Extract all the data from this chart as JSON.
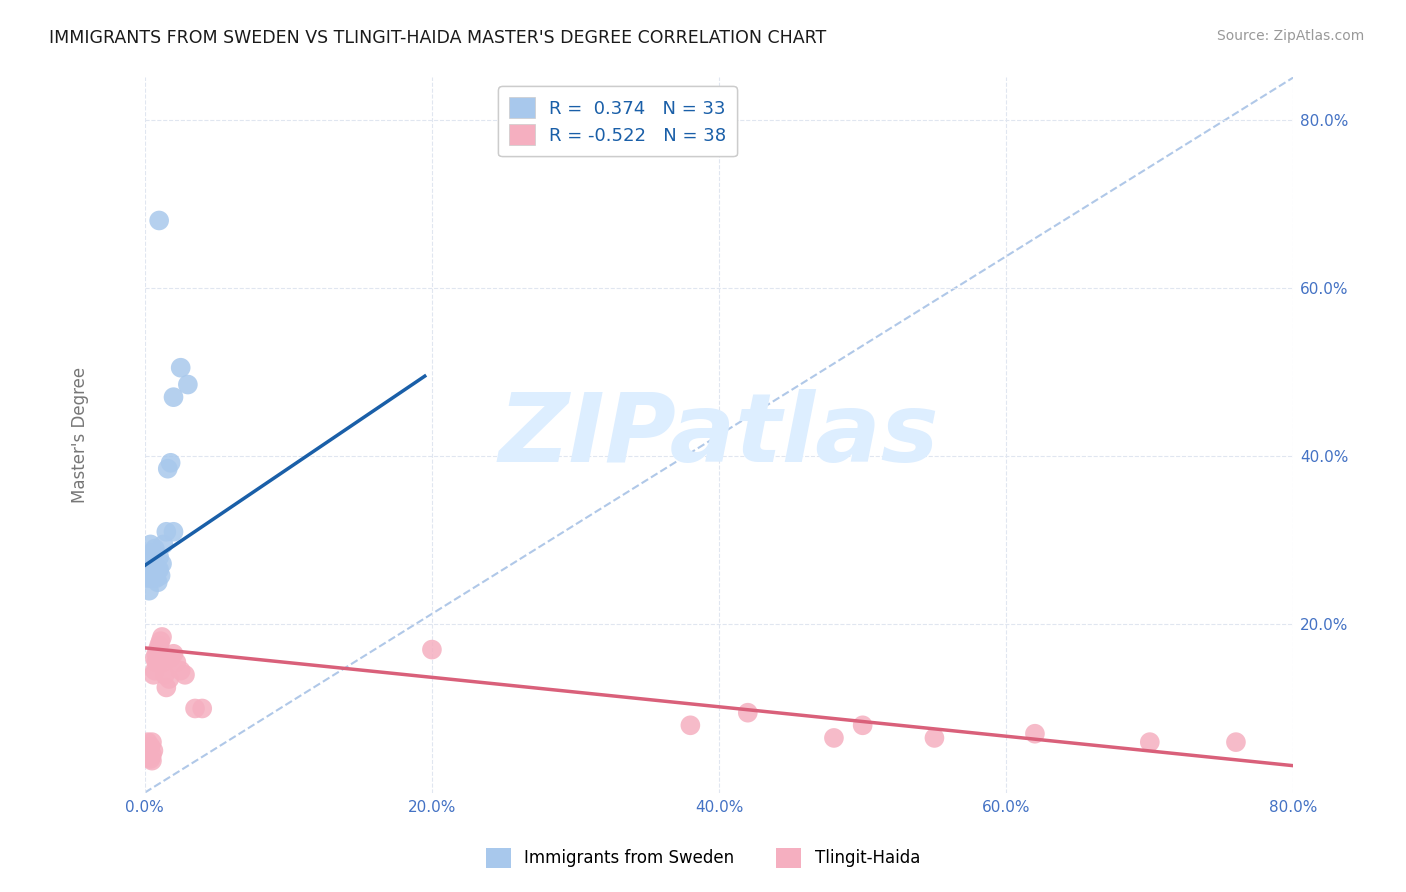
{
  "title": "IMMIGRANTS FROM SWEDEN VS TLINGIT-HAIDA MASTER'S DEGREE CORRELATION CHART",
  "source": "Source: ZipAtlas.com",
  "ylabel": "Master's Degree",
  "xlim": [
    0.0,
    0.8
  ],
  "ylim": [
    0.0,
    0.85
  ],
  "xticks": [
    0.0,
    0.2,
    0.4,
    0.6,
    0.8
  ],
  "yticks": [
    0.2,
    0.4,
    0.6,
    0.8
  ],
  "xticklabels": [
    "0.0%",
    "20.0%",
    "40.0%",
    "60.0%",
    "80.0%"
  ],
  "yticklabels": [
    "20.0%",
    "40.0%",
    "60.0%",
    "80.0%"
  ],
  "blue_R": "0.374",
  "blue_N": "33",
  "pink_R": "-0.522",
  "pink_N": "38",
  "blue_color": "#a8c8ec",
  "pink_color": "#f5afc0",
  "blue_line_color": "#1a5fa8",
  "pink_line_color": "#d9607a",
  "dashed_line_color": "#b0c8e8",
  "grid_color": "#e0e6f0",
  "background_color": "#ffffff",
  "watermark_text": "ZIPatlas",
  "watermark_color": "#ddeeff",
  "legend_label_blue": "Immigrants from Sweden",
  "legend_label_pink": "Tlingit-Haida",
  "blue_scatter_x": [
    0.002,
    0.003,
    0.003,
    0.004,
    0.004,
    0.004,
    0.005,
    0.005,
    0.005,
    0.005,
    0.006,
    0.006,
    0.006,
    0.007,
    0.007,
    0.007,
    0.008,
    0.008,
    0.009,
    0.009,
    0.01,
    0.01,
    0.011,
    0.012,
    0.013,
    0.015,
    0.016,
    0.018,
    0.02,
    0.025,
    0.03,
    0.02,
    0.01
  ],
  "blue_scatter_y": [
    0.255,
    0.24,
    0.265,
    0.275,
    0.28,
    0.295,
    0.255,
    0.265,
    0.275,
    0.285,
    0.26,
    0.27,
    0.285,
    0.26,
    0.27,
    0.29,
    0.255,
    0.268,
    0.25,
    0.265,
    0.265,
    0.28,
    0.258,
    0.272,
    0.295,
    0.31,
    0.385,
    0.392,
    0.47,
    0.505,
    0.485,
    0.31,
    0.68
  ],
  "pink_scatter_x": [
    0.002,
    0.003,
    0.004,
    0.004,
    0.005,
    0.005,
    0.005,
    0.006,
    0.006,
    0.007,
    0.007,
    0.008,
    0.008,
    0.009,
    0.01,
    0.01,
    0.011,
    0.012,
    0.013,
    0.014,
    0.015,
    0.017,
    0.018,
    0.02,
    0.022,
    0.025,
    0.028,
    0.035,
    0.04,
    0.2,
    0.38,
    0.42,
    0.48,
    0.5,
    0.55,
    0.62,
    0.7,
    0.76
  ],
  "pink_scatter_y": [
    0.06,
    0.042,
    0.04,
    0.055,
    0.038,
    0.045,
    0.06,
    0.05,
    0.14,
    0.145,
    0.16,
    0.155,
    0.165,
    0.17,
    0.155,
    0.175,
    0.18,
    0.185,
    0.155,
    0.14,
    0.125,
    0.135,
    0.16,
    0.165,
    0.155,
    0.145,
    0.14,
    0.1,
    0.1,
    0.17,
    0.08,
    0.095,
    0.065,
    0.08,
    0.065,
    0.07,
    0.06,
    0.06
  ],
  "blue_line_x0": 0.0,
  "blue_line_y0": 0.27,
  "blue_line_x1": 0.195,
  "blue_line_y1": 0.495,
  "pink_line_x0": 0.0,
  "pink_line_y0": 0.172,
  "pink_line_x1": 0.8,
  "pink_line_y1": 0.032
}
